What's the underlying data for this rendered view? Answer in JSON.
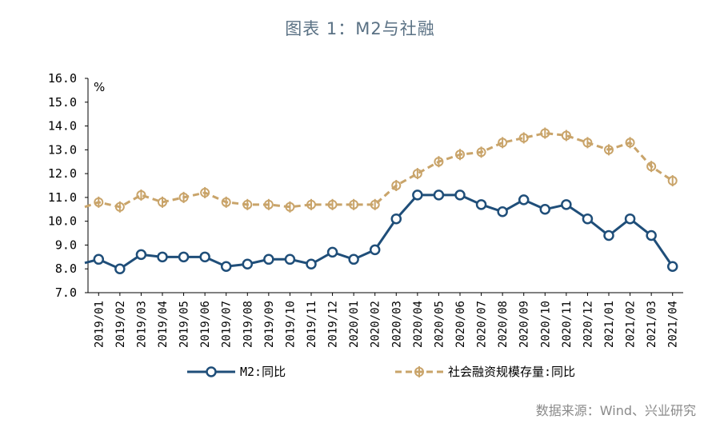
{
  "title": "图表 1：M2与社融",
  "source": "数据来源：Wind、兴业研究",
  "chart_data": {
    "type": "line",
    "title": "图表 1：M2与社融",
    "ylabel": "%",
    "xlabel": "",
    "ylim": [
      7.0,
      16.0
    ],
    "yticks": [
      "7.0",
      "8.0",
      "9.0",
      "10.0",
      "11.0",
      "12.0",
      "13.0",
      "14.0",
      "15.0",
      "16.0"
    ],
    "categories": [
      "2019/01",
      "2019/02",
      "2019/03",
      "2019/04",
      "2019/05",
      "2019/06",
      "2019/07",
      "2019/08",
      "2019/09",
      "2019/10",
      "2019/11",
      "2019/12",
      "2020/01",
      "2020/02",
      "2020/03",
      "2020/04",
      "2020/05",
      "2020/06",
      "2020/07",
      "2020/08",
      "2020/09",
      "2020/10",
      "2020/11",
      "2020/12",
      "2021/01",
      "2021/02",
      "2021/03",
      "2021/04"
    ],
    "legend_position": "bottom",
    "series": [
      {
        "name": "M2:同比",
        "color": "#1f4e79",
        "style": "solid-circle",
        "values": [
          8.4,
          8.0,
          8.6,
          8.5,
          8.5,
          8.5,
          8.1,
          8.2,
          8.4,
          8.4,
          8.2,
          8.7,
          8.4,
          8.8,
          10.1,
          11.1,
          11.1,
          11.1,
          10.7,
          10.4,
          10.9,
          10.5,
          10.7,
          10.1,
          9.4,
          10.1,
          9.4,
          8.1
        ]
      },
      {
        "name": "社会融资规模存量:同比",
        "color": "#c9a46a",
        "style": "dashed-tick",
        "values": [
          10.8,
          10.6,
          11.1,
          10.8,
          11.0,
          11.2,
          10.8,
          10.7,
          10.7,
          10.6,
          10.7,
          10.7,
          10.7,
          10.7,
          11.5,
          12.0,
          12.5,
          12.8,
          12.9,
          13.3,
          13.5,
          13.7,
          13.6,
          13.3,
          13.0,
          13.3,
          12.3,
          11.7
        ]
      }
    ]
  }
}
